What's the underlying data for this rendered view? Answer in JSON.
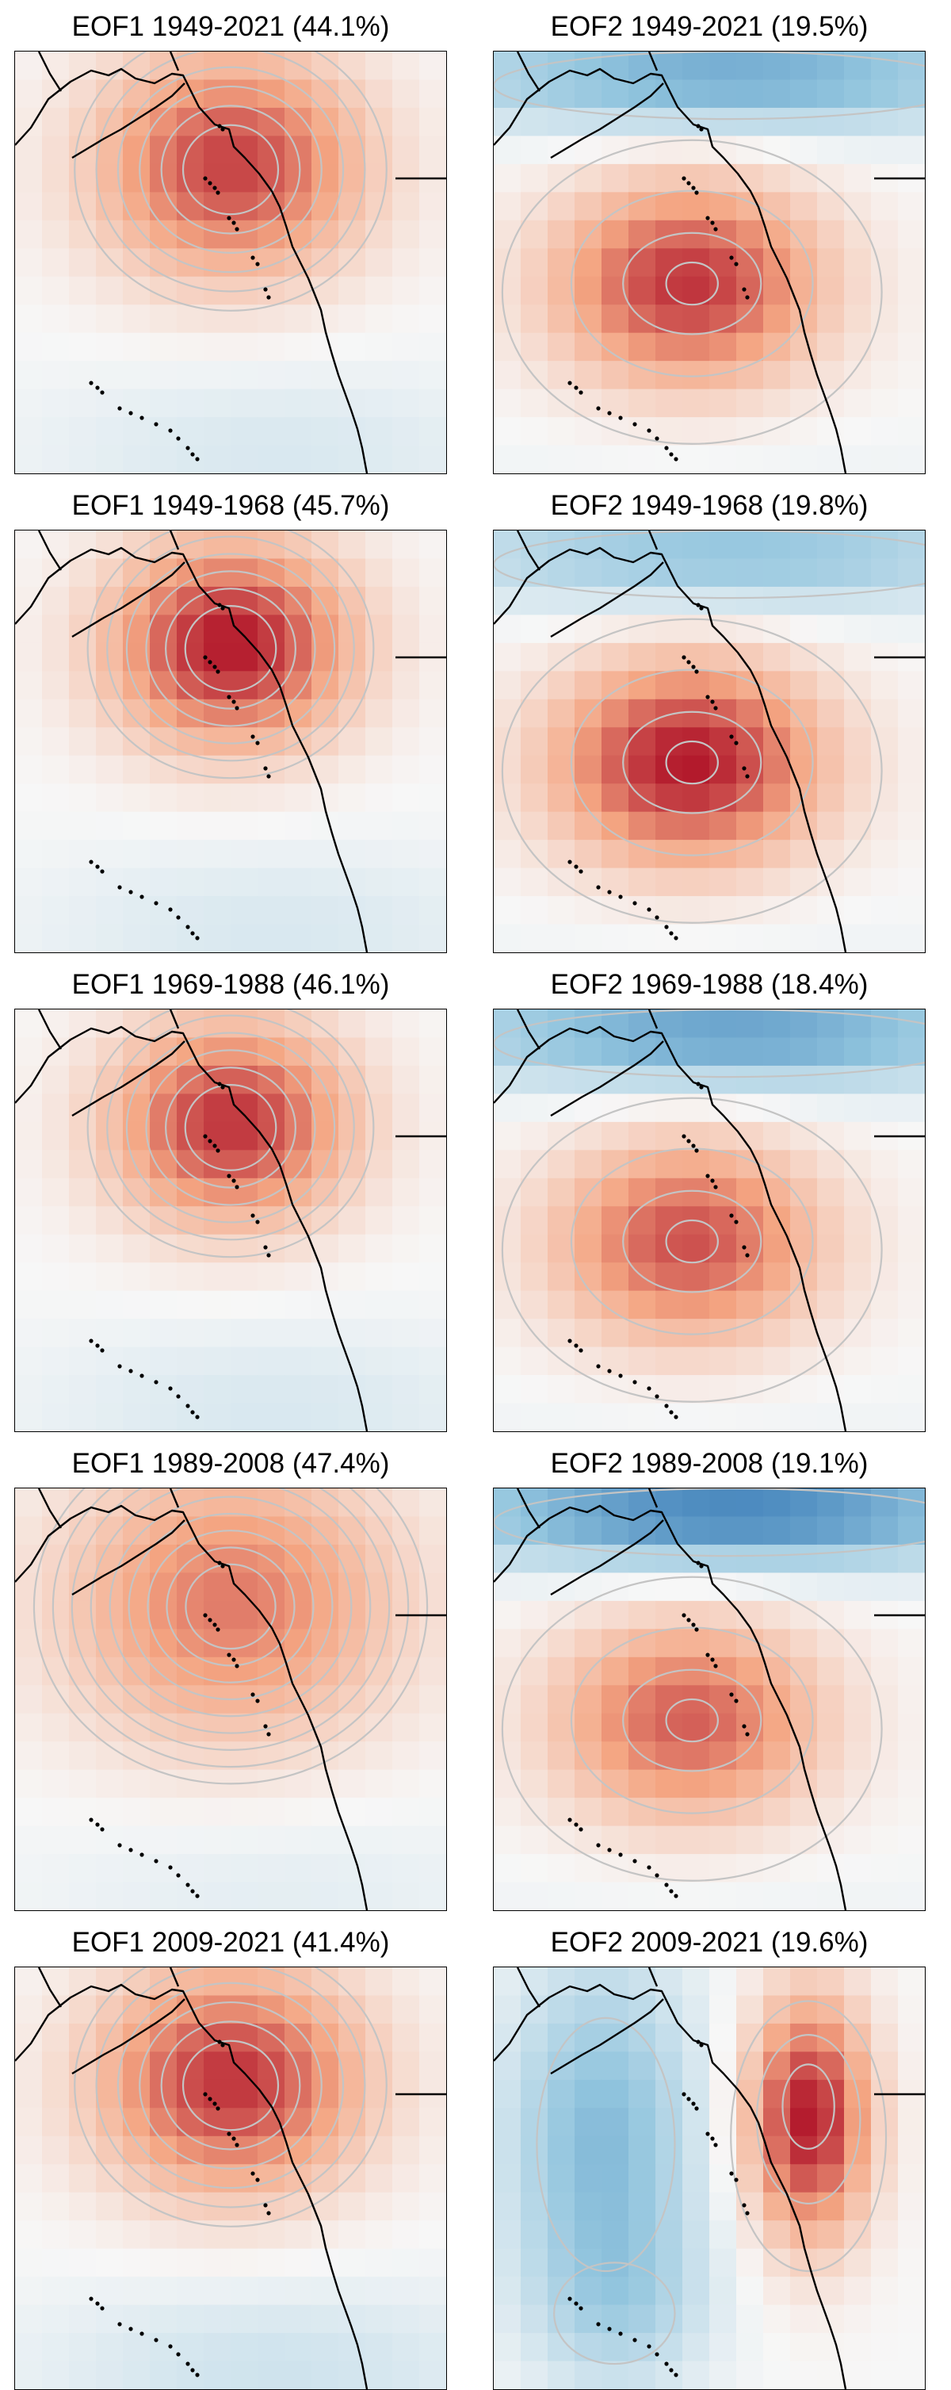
{
  "figure": {
    "panels": [
      {
        "title": "EOF1 1949-2021 (44.1%)",
        "pattern": "eof1",
        "peak": 0.85,
        "spread": 1.0,
        "upper_low": 0.0,
        "outer_low": 0.15
      },
      {
        "title": "EOF2 1949-2021 (19.5%)",
        "pattern": "eof2",
        "peak": 0.9,
        "spread": 1.0,
        "upper_low": 0.65,
        "outer_low": 0.05
      },
      {
        "title": "EOF1 1949-1968 (45.7%)",
        "pattern": "eof1",
        "peak": 1.0,
        "spread": 0.9,
        "upper_low": 0.0,
        "outer_low": 0.15
      },
      {
        "title": "EOF2 1949-1968 (19.8%)",
        "pattern": "eof2",
        "peak": 1.0,
        "spread": 1.0,
        "upper_low": 0.5,
        "outer_low": 0.05
      },
      {
        "title": "EOF1 1969-1988 (46.1%)",
        "pattern": "eof1",
        "peak": 0.9,
        "spread": 0.9,
        "upper_low": 0.0,
        "outer_low": 0.15
      },
      {
        "title": "EOF2 1969-1988 (18.4%)",
        "pattern": "eof2",
        "peak": 0.8,
        "spread": 1.0,
        "upper_low": 0.7,
        "outer_low": 0.05
      },
      {
        "title": "EOF1 1989-2008 (47.4%)",
        "pattern": "eof1",
        "peak": 0.65,
        "spread": 1.25,
        "upper_low": 0.0,
        "outer_low": 0.1
      },
      {
        "title": "EOF2 1989-2008 (19.1%)",
        "pattern": "eof2",
        "peak": 0.75,
        "spread": 1.0,
        "upper_low": 0.85,
        "outer_low": 0.05
      },
      {
        "title": "EOF1 2009-2021 (41.4%)",
        "pattern": "eof1",
        "peak": 0.9,
        "spread": 1.0,
        "upper_low": 0.0,
        "outer_low": 0.2
      },
      {
        "title": "EOF2 2009-2021 (19.6%)",
        "pattern": "eof2b",
        "peak": 1.0,
        "spread": 1.0,
        "upper_low": 0.55,
        "outer_low": 0.05
      }
    ]
  }
}
